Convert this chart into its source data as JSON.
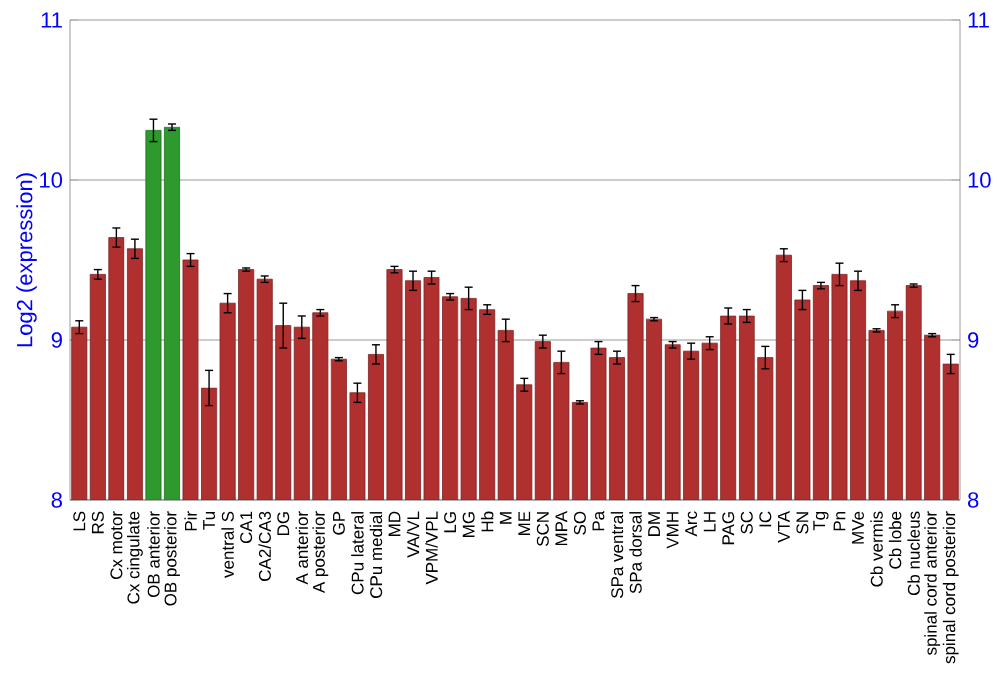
{
  "chart_data": {
    "type": "bar",
    "ylabel": "Log2 (expression)",
    "categories": [
      "LS",
      "RS",
      "Cx motor",
      "Cx cingulate",
      "OB anterior",
      "OB posterior",
      "Pir",
      "Tu",
      "ventral S",
      "CA1",
      "CA2/CA3",
      "DG",
      "A anterior",
      "A posterior",
      "GP",
      "CPu lateral",
      "CPu medial",
      "MD",
      "VA/VL",
      "VPM/VPL",
      "LG",
      "MG",
      "Hb",
      "M",
      "ME",
      "SCN",
      "MPA",
      "SO",
      "Pa",
      "SPa ventral",
      "SPa dorsal",
      "DM",
      "VMH",
      "Arc",
      "LH",
      "PAG",
      "SC",
      "IC",
      "VTA",
      "SN",
      "Tg",
      "Pn",
      "MVe",
      "Cb vermis",
      "Cb lobe",
      "Cb nucleus",
      "spinal cord anterior",
      "spinal cord posterior"
    ],
    "values": [
      9.08,
      9.41,
      9.64,
      9.57,
      10.31,
      10.33,
      9.5,
      8.7,
      9.23,
      9.44,
      9.38,
      9.09,
      9.08,
      9.17,
      8.88,
      8.67,
      8.91,
      9.44,
      9.37,
      9.39,
      9.27,
      9.26,
      9.19,
      9.06,
      8.72,
      8.99,
      8.86,
      8.61,
      8.95,
      8.89,
      9.29,
      9.13,
      8.97,
      8.93,
      8.98,
      9.15,
      9.15,
      8.89,
      9.53,
      9.25,
      9.34,
      9.41,
      9.37,
      9.06,
      9.18,
      9.34,
      9.03,
      8.85
    ],
    "errors": [
      0.04,
      0.03,
      0.06,
      0.06,
      0.07,
      0.02,
      0.04,
      0.11,
      0.06,
      0.01,
      0.02,
      0.14,
      0.07,
      0.02,
      0.01,
      0.06,
      0.06,
      0.02,
      0.06,
      0.04,
      0.02,
      0.07,
      0.03,
      0.07,
      0.04,
      0.04,
      0.07,
      0.01,
      0.04,
      0.04,
      0.05,
      0.01,
      0.02,
      0.05,
      0.04,
      0.05,
      0.04,
      0.07,
      0.04,
      0.06,
      0.02,
      0.07,
      0.06,
      0.01,
      0.04,
      0.01,
      0.01,
      0.06
    ],
    "colors": [
      "#b03030",
      "#b03030",
      "#b03030",
      "#b03030",
      "#2e9a2e",
      "#2e9a2e",
      "#b03030",
      "#b03030",
      "#b03030",
      "#b03030",
      "#b03030",
      "#b03030",
      "#b03030",
      "#b03030",
      "#b03030",
      "#b03030",
      "#b03030",
      "#b03030",
      "#b03030",
      "#b03030",
      "#b03030",
      "#b03030",
      "#b03030",
      "#b03030",
      "#b03030",
      "#b03030",
      "#b03030",
      "#b03030",
      "#b03030",
      "#b03030",
      "#b03030",
      "#b03030",
      "#b03030",
      "#b03030",
      "#b03030",
      "#b03030",
      "#b03030",
      "#b03030",
      "#b03030",
      "#b03030",
      "#b03030",
      "#b03030",
      "#b03030",
      "#b03030",
      "#b03030",
      "#b03030",
      "#b03030",
      "#b03030"
    ],
    "ylim": [
      8,
      11
    ],
    "yticks": [
      8,
      9,
      10,
      11
    ],
    "y2lim": [
      8,
      11
    ],
    "y2ticks": [
      8,
      9,
      10,
      11
    ],
    "grid": "y"
  }
}
